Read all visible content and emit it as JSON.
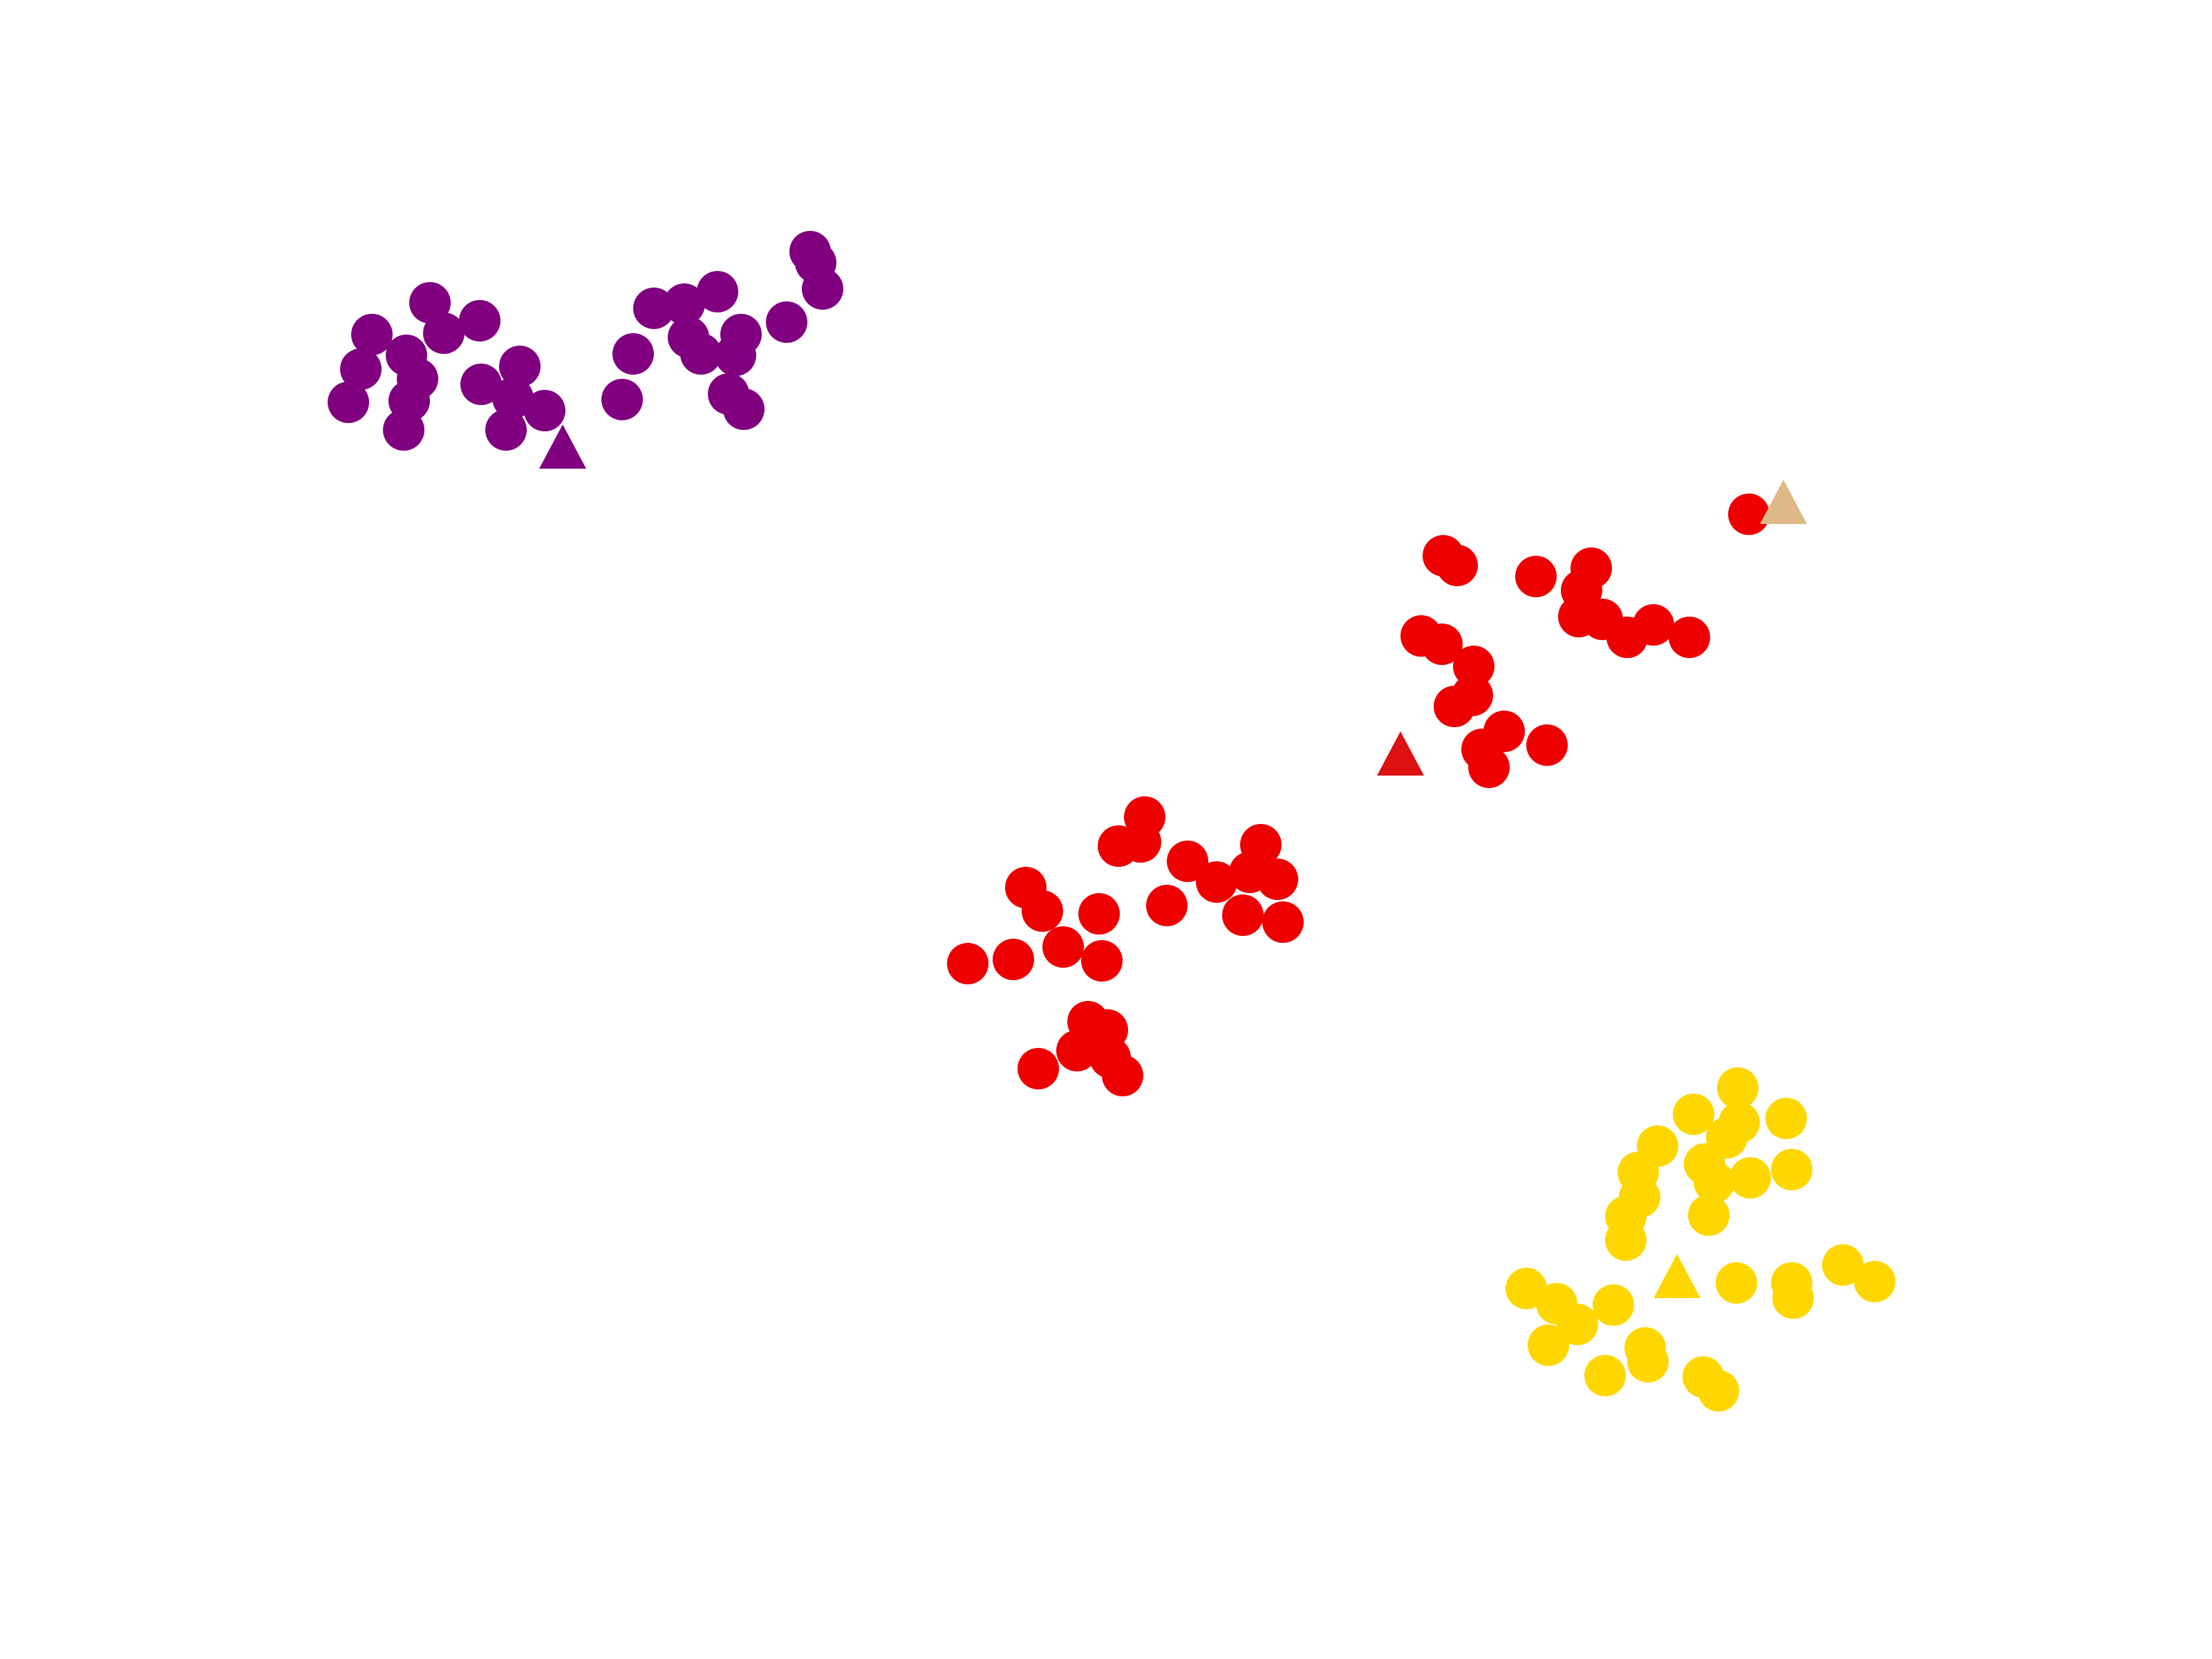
{
  "colors": {
    "purple": "#800080",
    "red": "#ee0000",
    "red_centroid": "#dd1111",
    "yellow": "#ffd700",
    "tan": "#deb887",
    "background": "#ffffff"
  },
  "chart_data": {
    "type": "scatter",
    "title": "",
    "xlabel": "",
    "ylabel": "",
    "axes_visible": false,
    "grid": false,
    "legend": "none",
    "xlim": [
      0,
      1600
    ],
    "ylim": [
      1200,
      0
    ],
    "series": [
      {
        "color_key": "purple",
        "marker": "circle",
        "points": [
          [
            252,
            291
          ],
          [
            261,
            267
          ],
          [
            269,
            242
          ],
          [
            292,
            311
          ],
          [
            296,
            290
          ],
          [
            302,
            274
          ],
          [
            294,
            257
          ],
          [
            311,
            219
          ],
          [
            321,
            241
          ],
          [
            347,
            232
          ],
          [
            348,
            278
          ],
          [
            366,
            311
          ],
          [
            371,
            288
          ],
          [
            376,
            265
          ],
          [
            394,
            297
          ],
          [
            450,
            289
          ],
          [
            458,
            256
          ],
          [
            473,
            223
          ],
          [
            495,
            220
          ],
          [
            498,
            244
          ],
          [
            507,
            256
          ],
          [
            519,
            211
          ],
          [
            532,
            257
          ],
          [
            536,
            242
          ],
          [
            527,
            285
          ],
          [
            538,
            296
          ],
          [
            569,
            233
          ],
          [
            586,
            182
          ],
          [
            590,
            190
          ],
          [
            595,
            209
          ]
        ]
      },
      {
        "color_key": "purple",
        "marker": "triangle",
        "points": [
          [
            407,
            323
          ]
        ]
      },
      {
        "color_key": "red",
        "marker": "circle",
        "points": [
          [
            1044,
            402
          ],
          [
            1054,
            409
          ],
          [
            1111,
            417
          ],
          [
            1151,
            411
          ],
          [
            1144,
            427
          ],
          [
            1142,
            446
          ],
          [
            1159,
            448
          ],
          [
            1177,
            461
          ],
          [
            1196,
            452
          ],
          [
            1222,
            461
          ],
          [
            1265,
            372
          ],
          [
            1028,
            460
          ],
          [
            1043,
            466
          ],
          [
            1066,
            482
          ],
          [
            1065,
            503
          ],
          [
            1052,
            511
          ],
          [
            1088,
            529
          ],
          [
            1072,
            542
          ],
          [
            1077,
            555
          ],
          [
            1119,
            539
          ]
        ]
      },
      {
        "color_key": "red",
        "marker": "circle",
        "points": [
          [
            700,
            697
          ],
          [
            733,
            694
          ],
          [
            742,
            642
          ],
          [
            754,
            659
          ],
          [
            769,
            685
          ],
          [
            795,
            661
          ],
          [
            797,
            695
          ],
          [
            809,
            612
          ],
          [
            825,
            609
          ],
          [
            828,
            591
          ],
          [
            844,
            655
          ],
          [
            859,
            623
          ],
          [
            880,
            638
          ],
          [
            899,
            662
          ],
          [
            904,
            631
          ],
          [
            912,
            611
          ],
          [
            924,
            636
          ],
          [
            928,
            667
          ],
          [
            751,
            773
          ],
          [
            779,
            760
          ],
          [
            787,
            739
          ],
          [
            801,
            745
          ],
          [
            803,
            765
          ],
          [
            812,
            778
          ]
        ]
      },
      {
        "color_key": "red_centroid",
        "marker": "triangle",
        "points": [
          [
            1013,
            545
          ]
        ]
      },
      {
        "color_key": "tan",
        "marker": "triangle",
        "points": [
          [
            1290,
            363
          ]
        ]
      },
      {
        "color_key": "yellow",
        "marker": "circle",
        "points": [
          [
            1257,
            787
          ],
          [
            1258,
            812
          ],
          [
            1249,
            823
          ],
          [
            1225,
            806
          ],
          [
            1199,
            829
          ],
          [
            1185,
            848
          ],
          [
            1233,
            842
          ],
          [
            1240,
            855
          ],
          [
            1266,
            852
          ],
          [
            1292,
            809
          ],
          [
            1296,
            846
          ],
          [
            1186,
            866
          ],
          [
            1176,
            880
          ],
          [
            1176,
            897
          ],
          [
            1236,
            879
          ],
          [
            1104,
            932
          ],
          [
            1126,
            943
          ],
          [
            1141,
            958
          ],
          [
            1120,
            973
          ],
          [
            1167,
            944
          ],
          [
            1190,
            975
          ],
          [
            1192,
            985
          ],
          [
            1161,
            995
          ],
          [
            1232,
            996
          ],
          [
            1243,
            1006
          ],
          [
            1256,
            928
          ],
          [
            1296,
            928
          ],
          [
            1297,
            939
          ],
          [
            1333,
            915
          ],
          [
            1356,
            927
          ]
        ]
      },
      {
        "color_key": "yellow",
        "marker": "triangle",
        "points": [
          [
            1213,
            923
          ]
        ]
      }
    ]
  }
}
